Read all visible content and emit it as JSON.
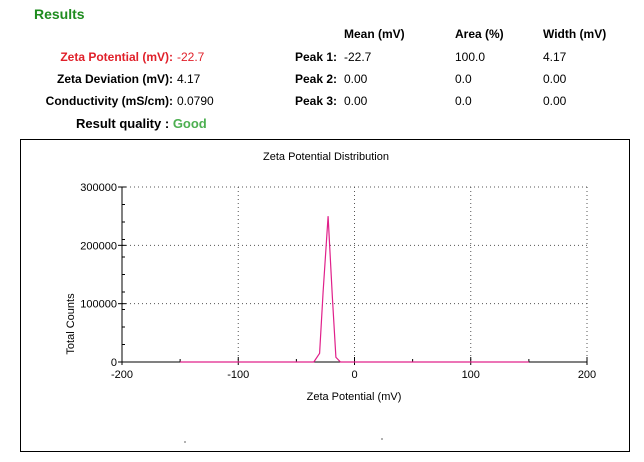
{
  "section_title": "Results",
  "summary": {
    "zeta_potential": {
      "label": "Zeta Potential (mV):",
      "value": "-22.7"
    },
    "zeta_deviation": {
      "label": "Zeta Deviation (mV):",
      "value": "4.17"
    },
    "conductivity": {
      "label": "Conductivity (mS/cm):",
      "value": "0.0790"
    },
    "result_quality": {
      "label": "Result quality :",
      "value": "Good"
    }
  },
  "peaks_table": {
    "headers": [
      "Mean (mV)",
      "Area (%)",
      "Width (mV)"
    ],
    "rows": [
      {
        "label": "Peak 1:",
        "mean": "-22.7",
        "area": "100.0",
        "width": "4.17"
      },
      {
        "label": "Peak 2:",
        "mean": "0.00",
        "area": "0.0",
        "width": "0.00"
      },
      {
        "label": "Peak 3:",
        "mean": "0.00",
        "area": "0.0",
        "width": "0.00"
      }
    ]
  },
  "colors": {
    "results_title": "#1e8c1e",
    "highlight": "#e0202a",
    "good": "#4caf50",
    "series": "#e0208a"
  },
  "chart_data": {
    "type": "line",
    "title": "Zeta Potential Distribution",
    "xlabel": "Zeta Potential (mV)",
    "ylabel": "Total Counts",
    "xlim": [
      -200,
      200
    ],
    "ylim": [
      0,
      300000
    ],
    "x_ticks": [
      "-200",
      "-100",
      "0",
      "100",
      "200"
    ],
    "y_ticks": [
      "0",
      "100000",
      "200000",
      "300000"
    ],
    "grid": "dotted",
    "series": [
      {
        "x": [
          -150,
          -50,
          -35,
          -30,
          -27,
          -22.7,
          -19,
          -16,
          -12,
          -5,
          0,
          50,
          100,
          150
        ],
        "y": [
          0,
          0,
          0,
          15000,
          120000,
          250000,
          110000,
          8000,
          0,
          0,
          0,
          0,
          0,
          0
        ]
      }
    ]
  }
}
